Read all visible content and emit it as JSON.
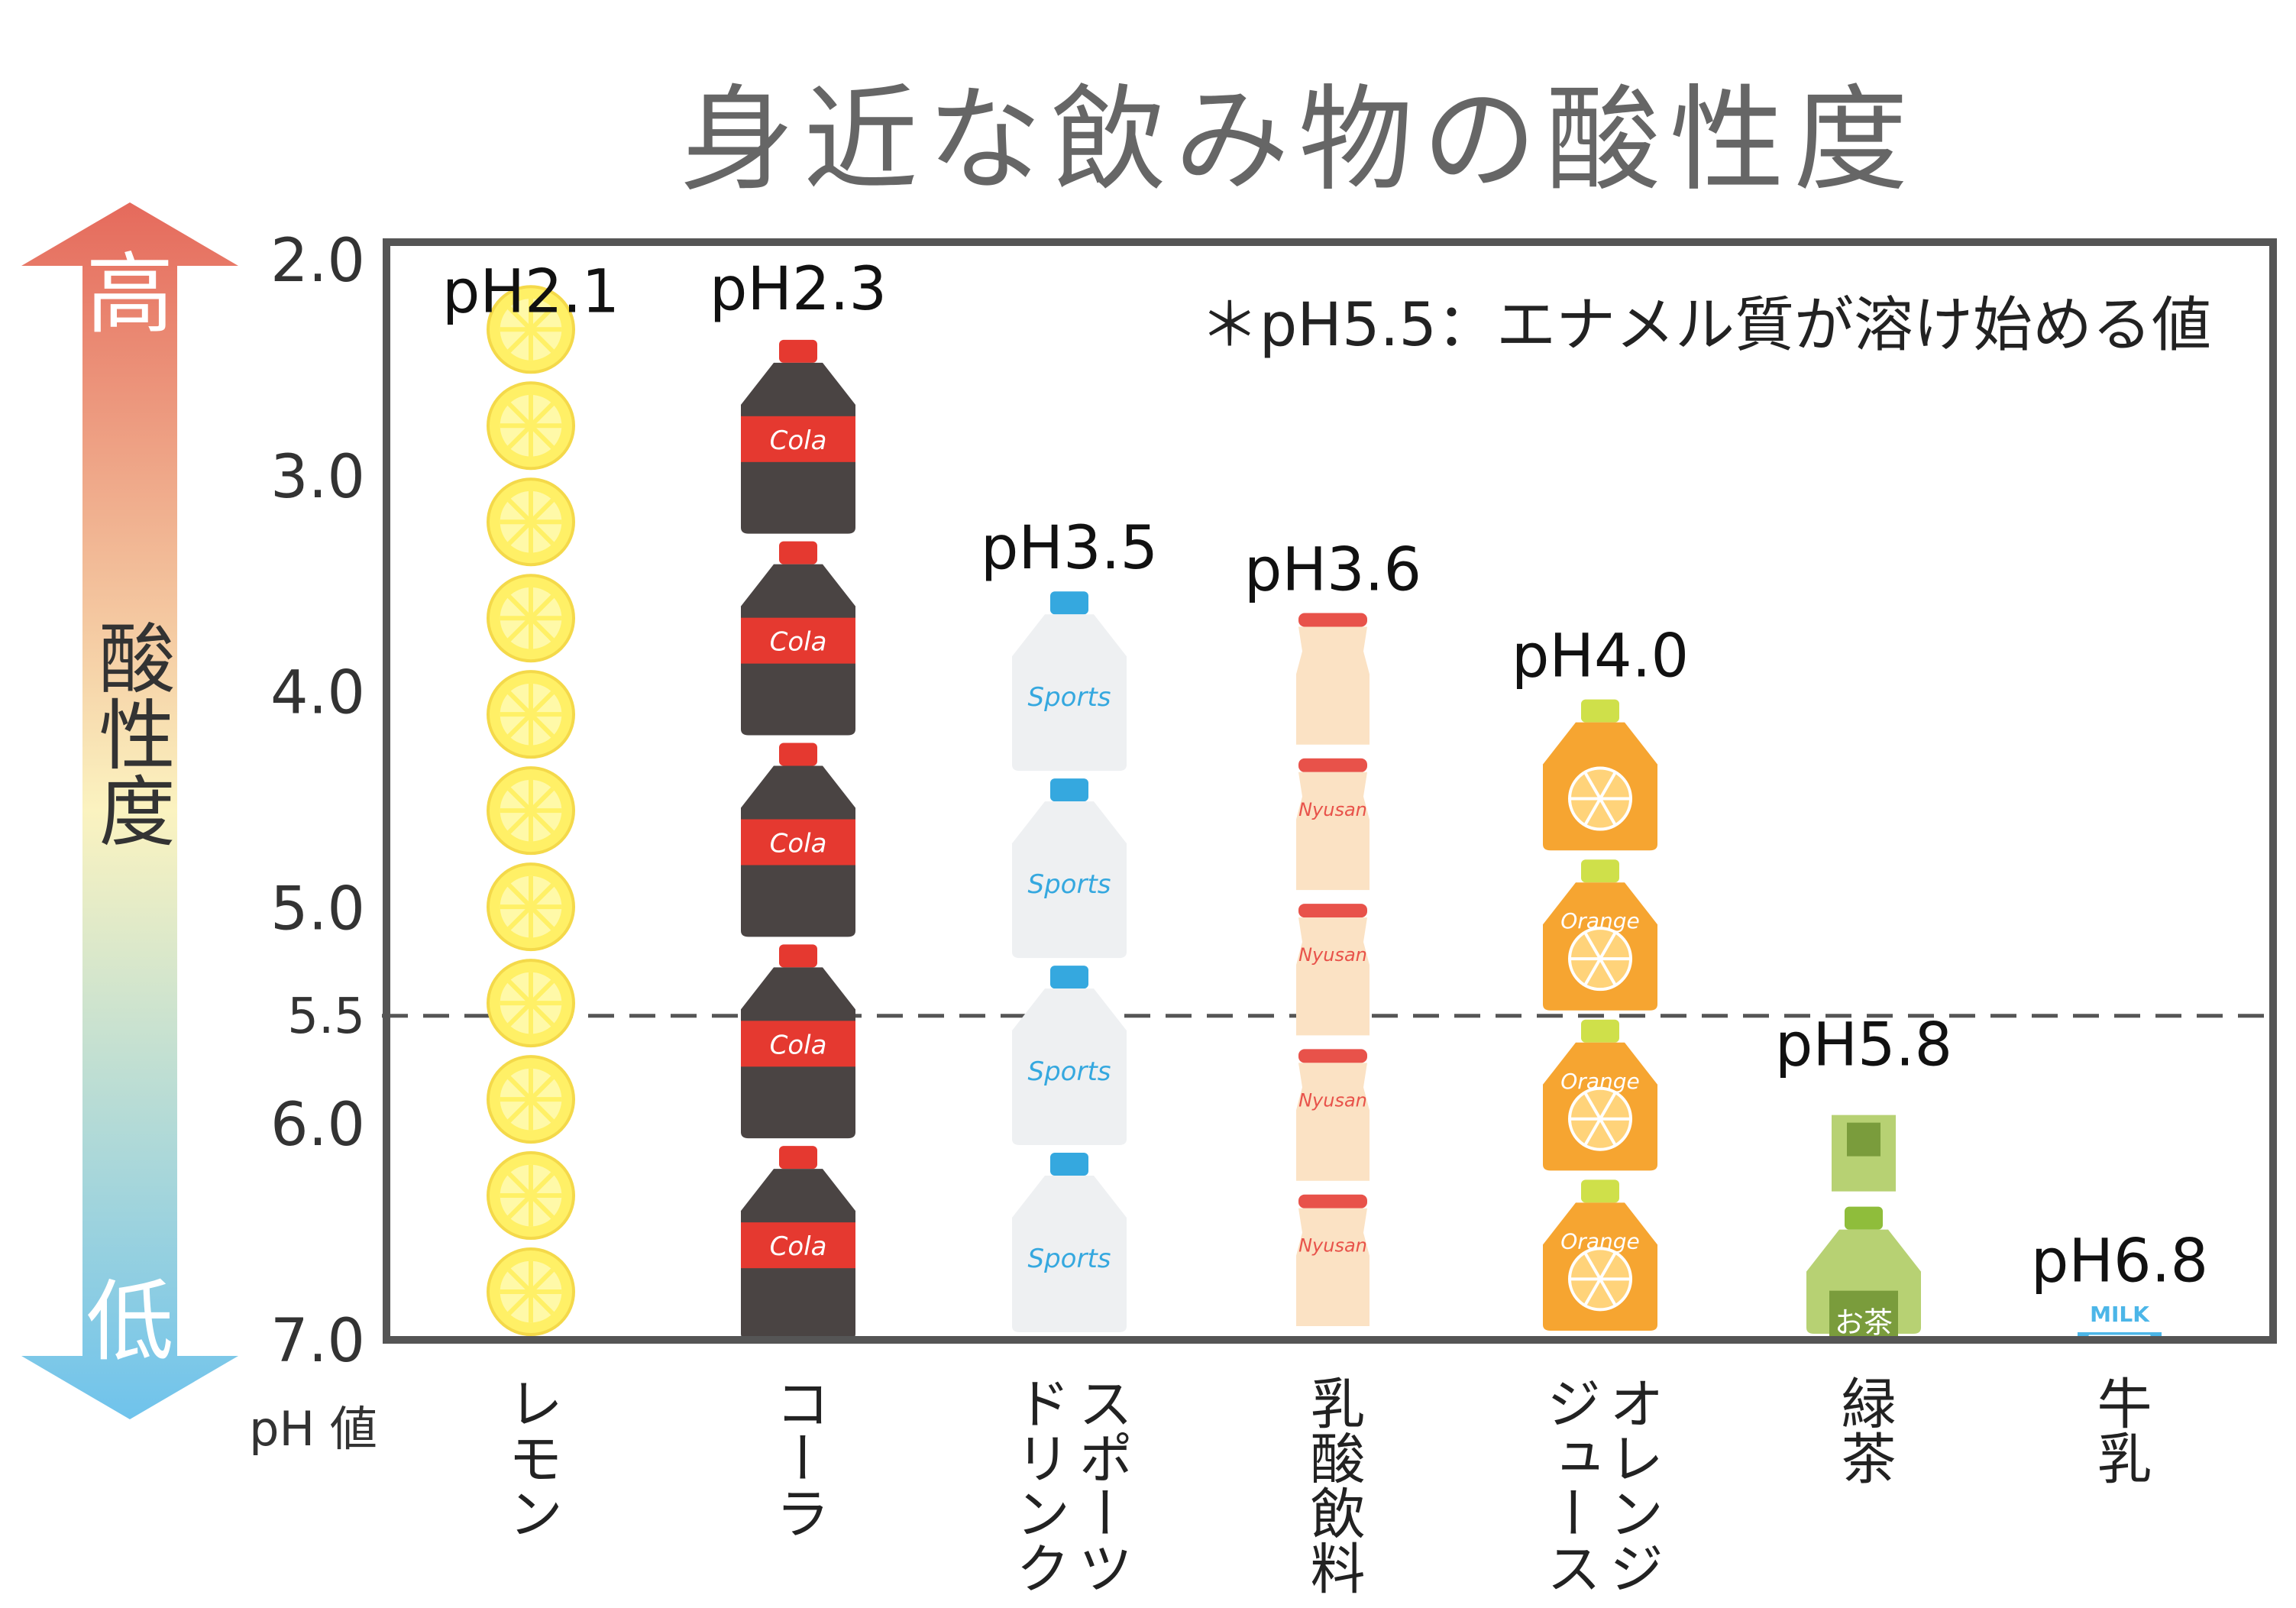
{
  "chart_data": {
    "type": "bar",
    "title": "身近な飲み物の酸性度",
    "ylabel": "pH 値",
    "ylim": [
      2.0,
      7.0
    ],
    "y_ticks": [
      "2.0",
      "3.0",
      "4.0",
      "5.0",
      "5.5",
      "6.0",
      "7.0"
    ],
    "y_tick_values": [
      2.0,
      3.0,
      4.0,
      5.0,
      5.5,
      6.0,
      7.0
    ],
    "threshold": 5.5,
    "note": "＊pH5.5：エナメル質が溶け始める値",
    "acidity_axis": {
      "label": "酸性度",
      "high": "高",
      "low": "低"
    },
    "categories": [
      "レモン",
      "コーラ",
      "スポーツドリンク",
      "乳酸飲料",
      "オレンジジュース",
      "緑茶",
      "牛乳"
    ],
    "values": [
      2.1,
      2.3,
      3.5,
      3.6,
      4.0,
      5.8,
      6.8
    ],
    "value_labels": [
      "pH2.1",
      "pH2.3",
      "pH3.5",
      "pH3.6",
      "pH4.0",
      "pH5.8",
      "pH6.8"
    ],
    "items": [
      {
        "name": "レモン",
        "icon": "lemon-slice-icon",
        "stack": 11
      },
      {
        "name": "コーラ",
        "icon": "cola-bottle-icon",
        "stack": 5,
        "text": "Cola"
      },
      {
        "name": "スポーツドリンク",
        "icon": "sports-bottle-icon",
        "stack": 4,
        "text": "Sports"
      },
      {
        "name": "乳酸飲料",
        "icon": "nyusan-bottle-icon",
        "stack": 5,
        "text": "Nyusan"
      },
      {
        "name": "オレンジジュース",
        "icon": "orange-bottle-icon",
        "stack": 4,
        "text": "Orange"
      },
      {
        "name": "緑茶",
        "icon": "tea-bottle-icon",
        "stack": 2,
        "text": "お茶"
      },
      {
        "name": "牛乳",
        "icon": "milk-carton-icon",
        "stack": 1,
        "text": "MILK"
      }
    ],
    "colors": {
      "frame": "#555555",
      "text": "#222222",
      "title": "#666666",
      "arrow_top": "#e56a5c",
      "arrow_mid": "#fbf3c0",
      "arrow_bottom": "#6fc3ec",
      "lemon": "#fff066",
      "cola_body": "#4a4443",
      "cola_label": "#e53930",
      "sports_body": "#eef0f2",
      "sports_label": "#35a8df",
      "nyusan_body": "#fbe2c4",
      "nyusan_cap": "#e8524a",
      "orange_body": "#f6a531",
      "orange_cap": "#cfe04a",
      "tea_body": "#b7d173",
      "tea_label": "#7a9c3c",
      "milk_blue": "#4cb6e8"
    }
  }
}
